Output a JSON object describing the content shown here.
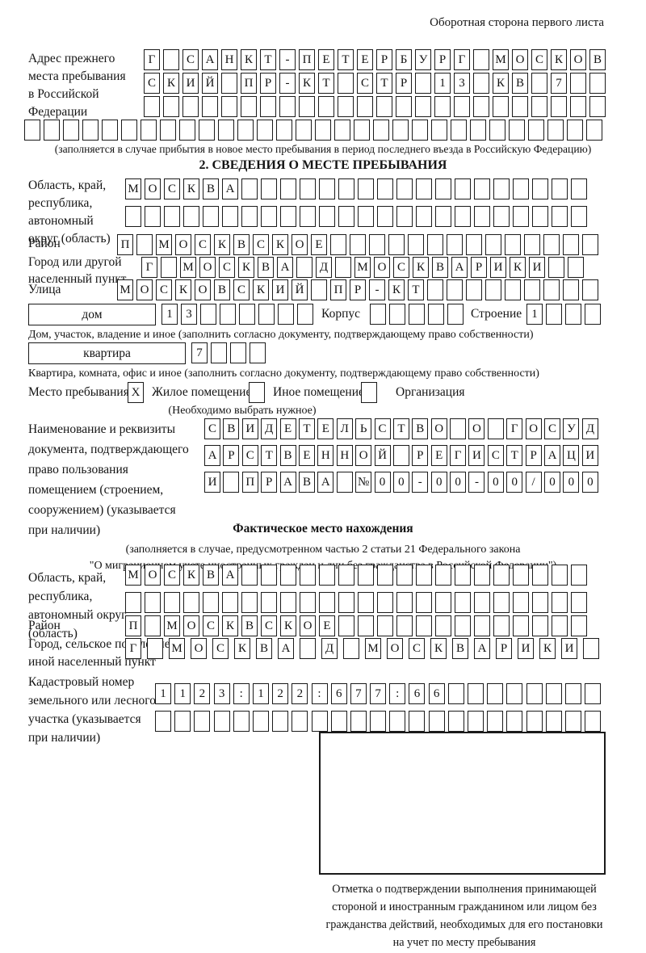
{
  "page": {
    "corner_note": "Оборотная сторона первого листа"
  },
  "prev_address": {
    "label": "Адрес прежнего\nместа пребывания\nв Российской\nФедерации",
    "rows": [
      {
        "text": "Г САНКТ-ПЕТЕРБУРГ МОСКОВ",
        "len": 24
      },
      {
        "text": "СКИЙ ПР-КТ СТР 13 КВ 7",
        "len": 24
      },
      {
        "text": "",
        "len": 24
      }
    ],
    "row_full": {
      "text": "",
      "len": 30
    },
    "note": "(заполняется в случае прибытия в новое место пребывания в период последнего въезда в Российскую Федерацию)"
  },
  "section2": {
    "title": "2. СВЕДЕНИЯ О МЕСТЕ ПРЕБЫВАНИЯ",
    "oblast": {
      "label": "Область, край,\nреспублика,\nавтономный\nокруг (область)",
      "rows": [
        {
          "text": "МОСКВА",
          "len": 24
        },
        {
          "text": "",
          "len": 24
        }
      ]
    },
    "raion": {
      "label": "Район",
      "row": {
        "text": "П МОСКВСКОЕ",
        "len": 25
      }
    },
    "gorod": {
      "label": "Город или другой\nнаселенный пункт",
      "row": {
        "text": "Г МОСКВА Д МОСКВАРИКИ",
        "len": 23
      }
    },
    "ulitsa": {
      "label": "Улица",
      "row": {
        "text": "МОСКОВСКИЙ ПР-КТ",
        "len": 25
      }
    },
    "dom": {
      "label": "дом",
      "boxes": {
        "text": "13",
        "len": 8
      },
      "korpus_label": "Корпус",
      "korpus_boxes": {
        "text": "",
        "len": 5
      },
      "stroenie_label": "Строение",
      "stroenie_boxes": {
        "text": "1",
        "len": 4
      },
      "note": "Дом, участок, владение и иное (заполнить согласно документу, подтверждающему право собственности)"
    },
    "kvartira": {
      "label": "квартира",
      "boxes": {
        "text": "7",
        "len": 4
      },
      "note": "Квартира, комната, офис и иное (заполнить согласно документу, подтверждающему право собственности)"
    },
    "mesto": {
      "label": "Место пребывания:",
      "zhiloe_box": {
        "text": "X",
        "len": 1
      },
      "zhiloe_label": "Жилое помещение",
      "inoe_box": {
        "text": "",
        "len": 1
      },
      "inoe_label": "Иное помещение",
      "org_box": {
        "text": "",
        "len": 1
      },
      "org_label": "Организация",
      "note": "(Необходимо выбрать нужное)"
    },
    "document": {
      "label": "Наименование и реквизиты\nдокумента, подтверждающего\nправо пользования\nпомещением (строением,\nсооружением) (указывается\nпри наличии)",
      "rows": [
        {
          "text": "СВИДЕТЕЛЬСТВО О ГОСУД",
          "len": 21
        },
        {
          "text": "АРСТВЕННОЙ РЕГИСТРАЦИ",
          "len": 21
        },
        {
          "text": "И ПРАВА №00-00-00/000",
          "len": 21
        }
      ]
    }
  },
  "section3": {
    "title": "Фактическое место нахождения",
    "note_line1": "(заполняется в случае, предусмотренном частью 2 статьи 21 Федерального закона",
    "note_line2": "\"О миграционном учете иностранных граждан и лиц без гражданства в Российской Федерации\")",
    "oblast": {
      "label": "Область, край,\nреспублика,\nавтономный округ\n(область)",
      "rows": [
        {
          "text": "МОСКВА",
          "len": 24
        },
        {
          "text": "",
          "len": 24
        }
      ]
    },
    "raion": {
      "label": "Район",
      "row": {
        "text": "П МОСКВСКОЕ",
        "len": 24
      }
    },
    "gorod": {
      "label": "Город, сельское поселение,\nиной населенный пункт",
      "row": {
        "text": "Г МОСКВА Д МОСКВАРИКИ",
        "len": 22
      }
    },
    "kadastr": {
      "label": "Кадастровый номер\nземельного или лесного\nучастка (указывается\nпри наличии)",
      "rows": [
        {
          "text": "1123:122:677:66",
          "len": 23
        },
        {
          "text": "",
          "len": 23
        }
      ]
    },
    "stamp_caption": "Отметка о подтверждении выполнения принимающей\nстороной и иностранным гражданином или лицом без\nгражданства действий, необходимых для его постановки\nна учет по месту пребывания"
  }
}
